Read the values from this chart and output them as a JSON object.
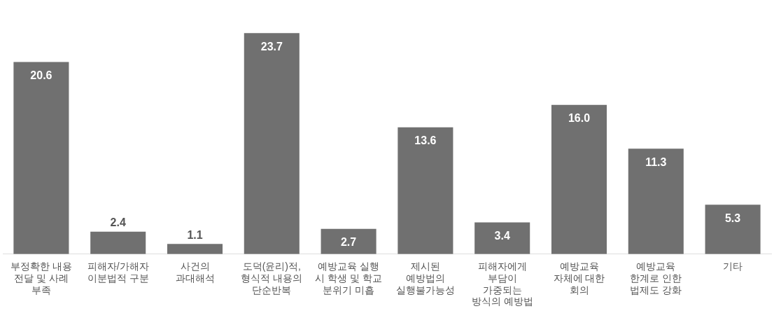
{
  "chart_data": {
    "type": "bar",
    "categories": [
      "부정확한 내용 전달 및 사례 부족",
      "피해자/가해자 이분법적 구분",
      "사건의 과대해석",
      "도덕(윤리)적, 형식적 내용의 단순반복",
      "예방교육 실행 시 학생 및 학교 분위기 미흡",
      "제시된 예방법의 실행불가능성",
      "피해자에게 부담이 가중되는 방식의 예방법",
      "예방교육 자체에 대한 회의",
      "예방교육 한계로 인한 법제도 강화",
      "기타"
    ],
    "values": [
      20.6,
      2.4,
      1.1,
      23.7,
      2.7,
      13.6,
      3.4,
      16.0,
      11.3,
      5.3
    ],
    "value_labels": [
      "20.6",
      "2.4",
      "1.1",
      "23.7",
      "2.7",
      "13.6",
      "3.4",
      "16.0",
      "11.3",
      "5.3"
    ],
    "color": "#707070",
    "grid": false,
    "legend": false
  }
}
